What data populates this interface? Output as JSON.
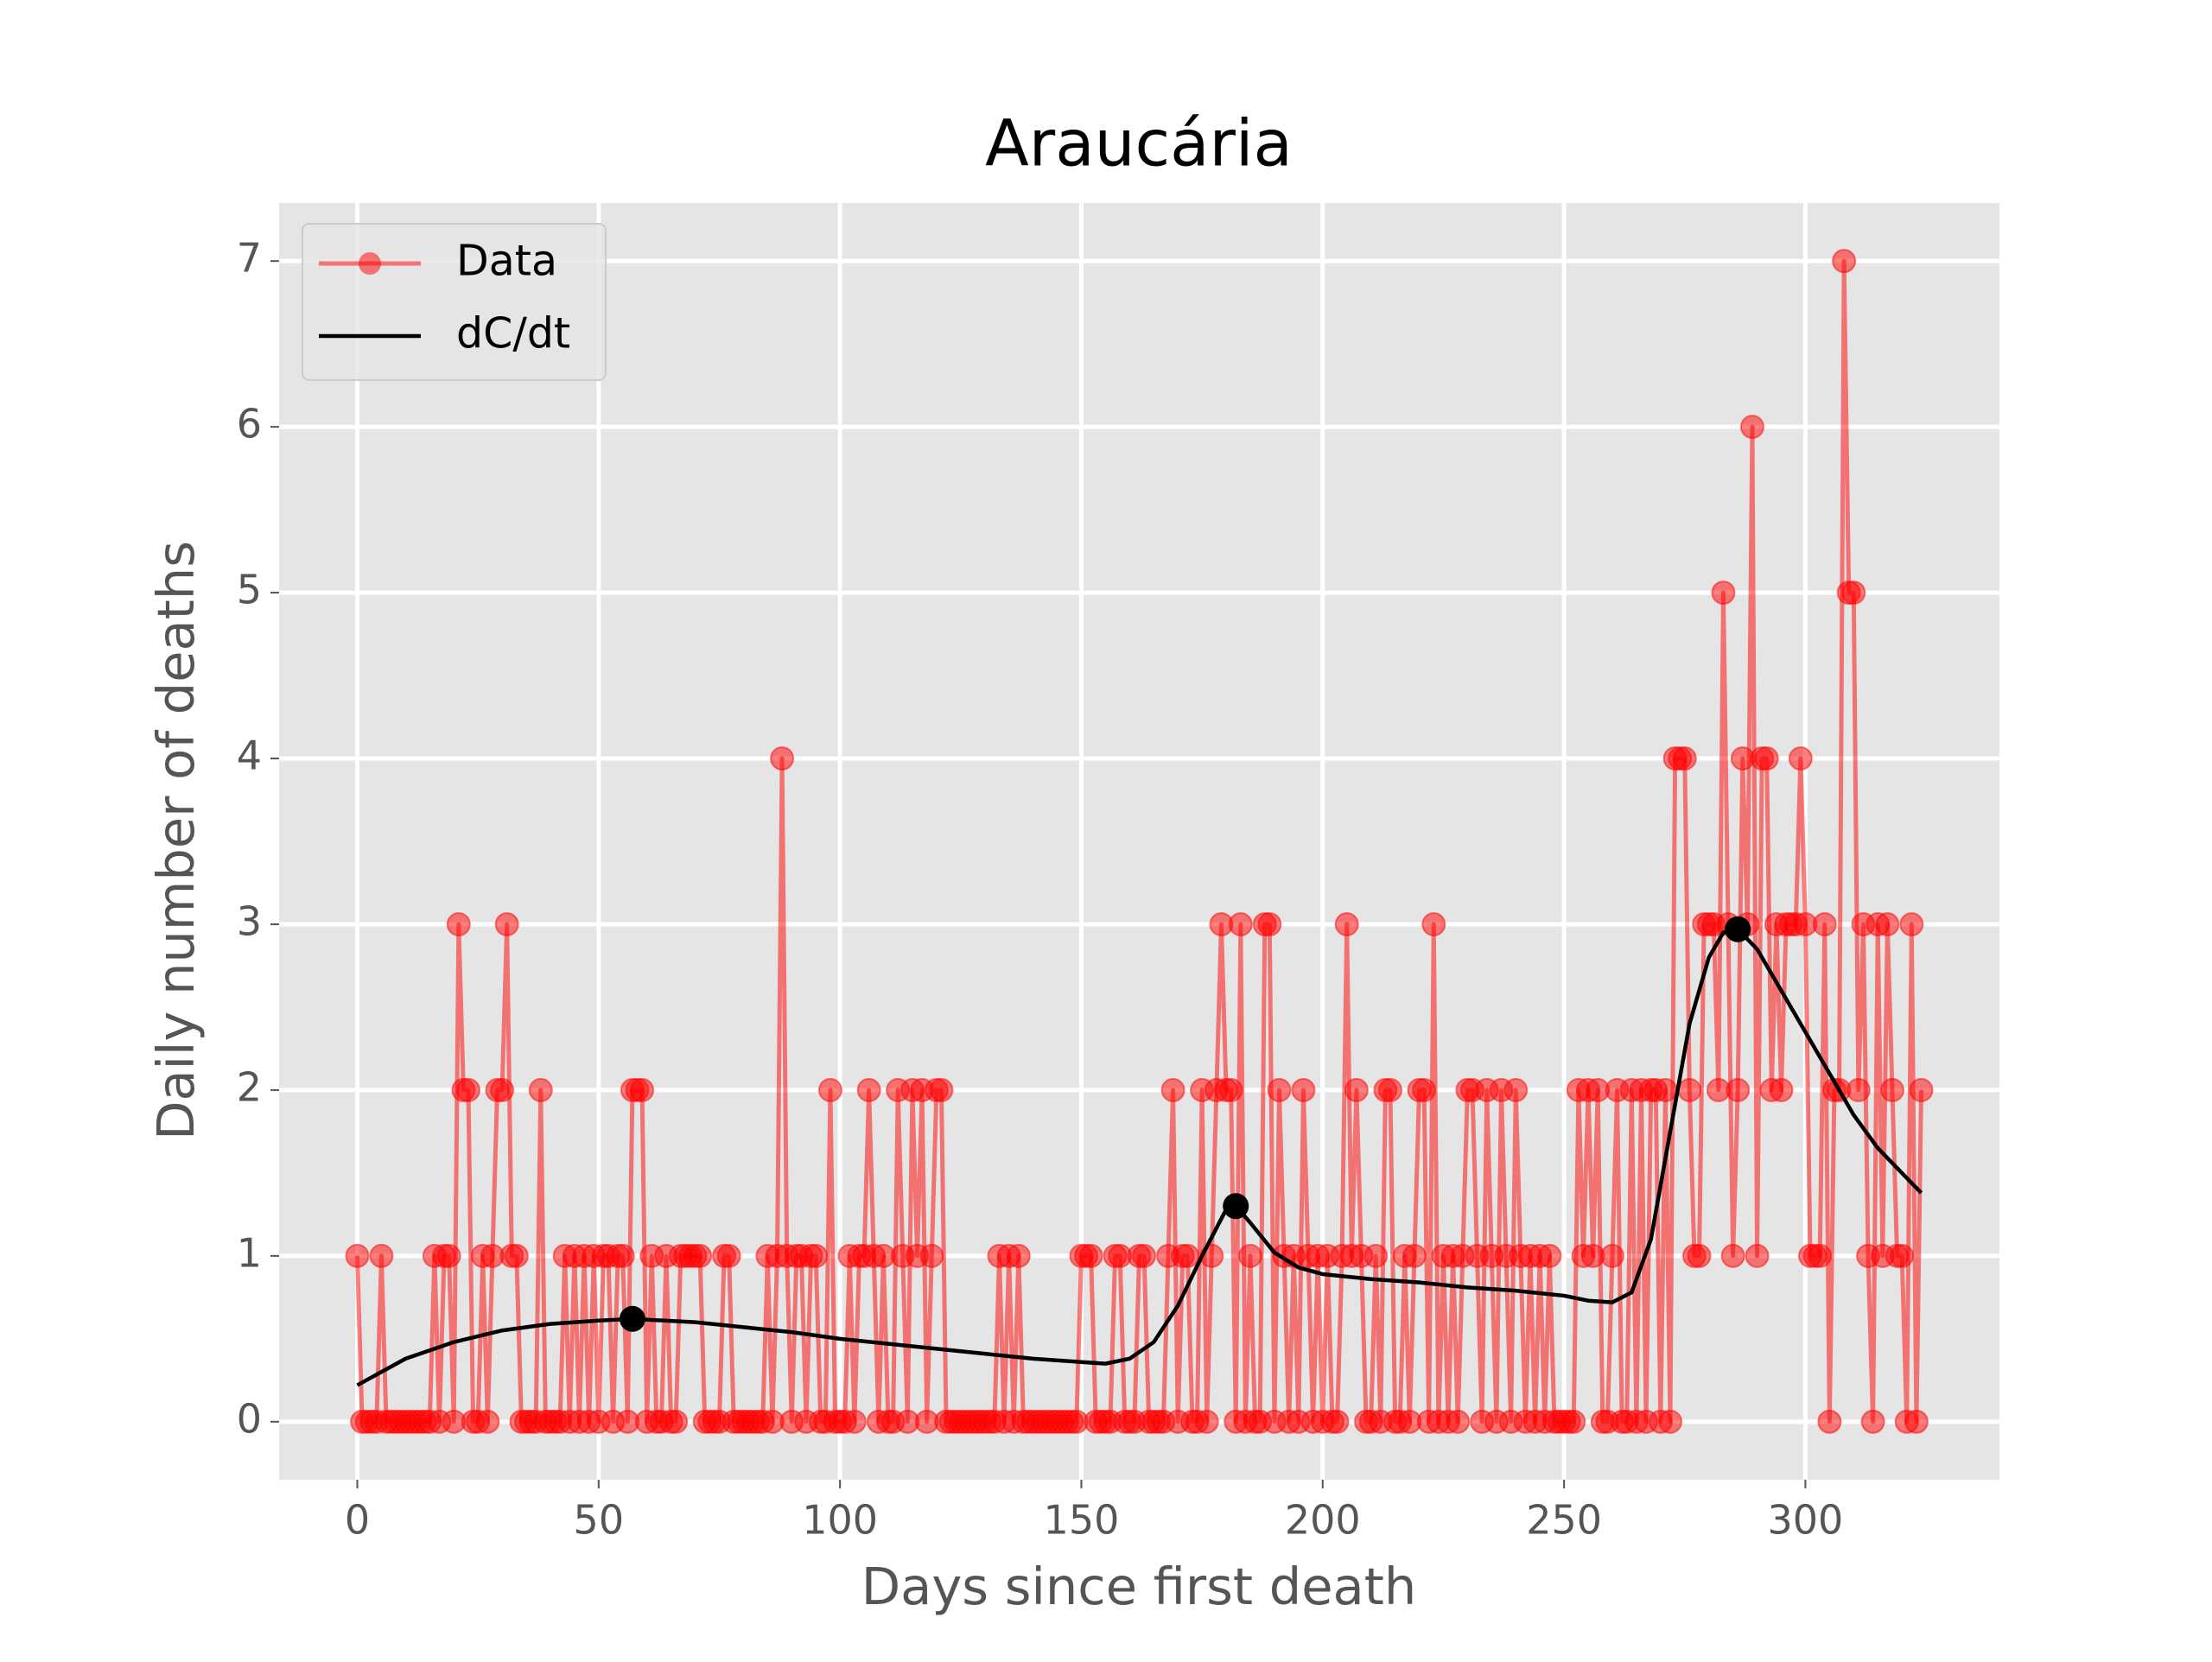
{
  "chart_data": {
    "type": "line",
    "title": "Araucária",
    "xlabel": "Days since first death",
    "ylabel": "Daily number of deaths",
    "xlim": [
      -16.2,
      340.2
    ],
    "ylim": [
      -0.35,
      7.35
    ],
    "xticks": [
      0,
      50,
      100,
      150,
      200,
      250,
      300
    ],
    "yticks": [
      0,
      1,
      2,
      3,
      4,
      5,
      6,
      7
    ],
    "grid": true,
    "legend": "upper left",
    "series": [
      {
        "name": "Data",
        "color": "#ff0000",
        "alpha": 0.5,
        "marker": "o",
        "x": [
          0,
          1,
          2,
          3,
          4,
          5,
          6,
          7,
          8,
          9,
          10,
          11,
          12,
          13,
          14,
          15,
          16,
          17,
          18,
          19,
          20,
          21,
          22,
          23,
          24,
          25,
          26,
          27,
          28,
          29,
          30,
          31,
          32,
          33,
          34,
          35,
          36,
          37,
          38,
          39,
          40,
          41,
          42,
          43,
          44,
          45,
          46,
          47,
          48,
          49,
          50,
          51,
          52,
          53,
          54,
          55,
          56,
          57,
          58,
          59,
          60,
          61,
          62,
          63,
          64,
          65,
          66,
          67,
          68,
          69,
          70,
          71,
          72,
          73,
          74,
          75,
          76,
          77,
          78,
          79,
          80,
          81,
          82,
          83,
          84,
          85,
          86,
          87,
          88,
          89,
          90,
          91,
          92,
          93,
          94,
          95,
          96,
          97,
          98,
          99,
          100,
          101,
          102,
          103,
          104,
          105,
          106,
          107,
          108,
          109,
          110,
          111,
          112,
          113,
          114,
          115,
          116,
          117,
          118,
          119,
          120,
          121,
          122,
          123,
          124,
          125,
          126,
          127,
          128,
          129,
          130,
          131,
          132,
          133,
          134,
          135,
          136,
          137,
          138,
          139,
          140,
          141,
          142,
          143,
          144,
          145,
          146,
          147,
          148,
          149,
          150,
          151,
          152,
          153,
          154,
          155,
          156,
          157,
          158,
          159,
          160,
          161,
          162,
          163,
          164,
          165,
          166,
          167,
          168,
          169,
          170,
          171,
          172,
          173,
          174,
          175,
          176,
          177,
          178,
          179,
          180,
          181,
          182,
          183,
          184,
          185,
          186,
          187,
          188,
          189,
          190,
          191,
          192,
          193,
          194,
          195,
          196,
          197,
          198,
          199,
          200,
          201,
          202,
          203,
          204,
          205,
          206,
          207,
          208,
          209,
          210,
          211,
          212,
          213,
          214,
          215,
          216,
          217,
          218,
          219,
          220,
          221,
          222,
          223,
          224,
          225,
          226,
          227,
          228,
          229,
          230,
          231,
          232,
          233,
          234,
          235,
          236,
          237,
          238,
          239,
          240,
          241,
          242,
          243,
          244,
          245,
          246,
          247,
          248,
          249,
          250,
          251,
          252,
          253,
          254,
          255,
          256,
          257,
          258,
          259,
          260,
          261,
          262,
          263,
          264,
          265,
          266,
          267,
          268,
          269,
          270,
          271,
          272,
          273,
          274,
          275,
          276,
          277,
          278,
          279,
          280,
          281,
          282,
          283,
          284,
          285,
          286,
          287,
          288,
          289,
          290,
          291,
          292,
          293,
          294,
          295,
          296,
          297,
          298,
          299,
          300,
          301,
          302,
          303,
          304,
          305,
          306,
          307,
          308,
          309,
          310,
          311,
          312,
          313,
          314,
          315,
          316,
          317,
          318,
          319,
          320,
          321,
          322,
          323,
          324
        ],
        "values": [
          1,
          0,
          0,
          0,
          0,
          1,
          0,
          0,
          0,
          0,
          0,
          0,
          0,
          0,
          0,
          0,
          1,
          0,
          1,
          1,
          0,
          3,
          2,
          2,
          0,
          0,
          1,
          0,
          1,
          2,
          2,
          3,
          1,
          1,
          0,
          0,
          0,
          0,
          2,
          0,
          0,
          0,
          0,
          1,
          0,
          1,
          0,
          1,
          0,
          1,
          0,
          1,
          1,
          0,
          1,
          1,
          0,
          2,
          2,
          2,
          0,
          1,
          0,
          0,
          1,
          0,
          0,
          1,
          1,
          1,
          1,
          1,
          0,
          0,
          0,
          0,
          1,
          1,
          0,
          0,
          0,
          0,
          0,
          0,
          0,
          1,
          0,
          1,
          4,
          1,
          0,
          1,
          1,
          0,
          1,
          1,
          0,
          0,
          2,
          0,
          0,
          0,
          1,
          0,
          1,
          1,
          2,
          1,
          0,
          1,
          0,
          0,
          2,
          1,
          0,
          2,
          1,
          2,
          0,
          1,
          2,
          2,
          0,
          0,
          0,
          0,
          0,
          0,
          0,
          0,
          0,
          0,
          0,
          1,
          0,
          1,
          0,
          1,
          0,
          0,
          0,
          0,
          0,
          0,
          0,
          0,
          0,
          0,
          0,
          0,
          1,
          1,
          1,
          0,
          0,
          0,
          0,
          1,
          1,
          0,
          0,
          0,
          1,
          1,
          0,
          0,
          0,
          0,
          1,
          2,
          0,
          1,
          1,
          0,
          0,
          2,
          0,
          1,
          2,
          3,
          2,
          2,
          0,
          3,
          0,
          1,
          0,
          0,
          3,
          3,
          0,
          2,
          1,
          0,
          1,
          0,
          2,
          1,
          0,
          1,
          0,
          1,
          0,
          0,
          1,
          3,
          1,
          2,
          1,
          0,
          0,
          1,
          0,
          2,
          2,
          0,
          0,
          1,
          0,
          1,
          2,
          2,
          0,
          3,
          0,
          1,
          0,
          1,
          0,
          1,
          2,
          2,
          1,
          0,
          2,
          1,
          0,
          2,
          1,
          0,
          2,
          1,
          0,
          1,
          0,
          1,
          0,
          1,
          0,
          0,
          0,
          0,
          0,
          2,
          1,
          2,
          1,
          2,
          0,
          0,
          1,
          2,
          0,
          0,
          2,
          0,
          2,
          0,
          2,
          2,
          0,
          2,
          0,
          4,
          4,
          4,
          2,
          1,
          1,
          3,
          3,
          3,
          2,
          5,
          3,
          1,
          2,
          4,
          3,
          6,
          1,
          4,
          4,
          2,
          3,
          2,
          3,
          3,
          3,
          4,
          3,
          1,
          1,
          1,
          3,
          0,
          2,
          2,
          7,
          5,
          5,
          2,
          3,
          1,
          0,
          3,
          1,
          3,
          2,
          1,
          1,
          0,
          3,
          0,
          2
        ]
      },
      {
        "name": "dC/dt",
        "color": "#000000",
        "x": [
          0,
          10,
          20,
          30,
          40,
          50,
          57,
          70,
          80,
          90,
          100,
          110,
          120,
          130,
          140,
          150,
          155,
          160,
          165,
          170,
          175,
          180,
          182,
          185,
          190,
          195,
          200,
          210,
          220,
          230,
          240,
          250,
          255,
          260,
          264,
          268,
          272,
          276,
          280,
          283,
          286,
          290,
          295,
          300,
          305,
          310,
          315,
          320,
          324
        ],
        "values": [
          0.22,
          0.38,
          0.48,
          0.55,
          0.59,
          0.61,
          0.62,
          0.6,
          0.57,
          0.54,
          0.5,
          0.47,
          0.44,
          0.41,
          0.38,
          0.36,
          0.35,
          0.38,
          0.48,
          0.7,
          1.0,
          1.28,
          1.3,
          1.2,
          1.02,
          0.93,
          0.89,
          0.86,
          0.84,
          0.81,
          0.79,
          0.76,
          0.73,
          0.72,
          0.78,
          1.1,
          1.75,
          2.4,
          2.8,
          2.95,
          2.97,
          2.85,
          2.6,
          2.35,
          2.1,
          1.85,
          1.65,
          1.5,
          1.38
        ]
      }
    ],
    "peaks": {
      "color": "#000000",
      "x": [
        57,
        182,
        286
      ],
      "values": [
        0.62,
        1.3,
        2.97
      ]
    }
  }
}
